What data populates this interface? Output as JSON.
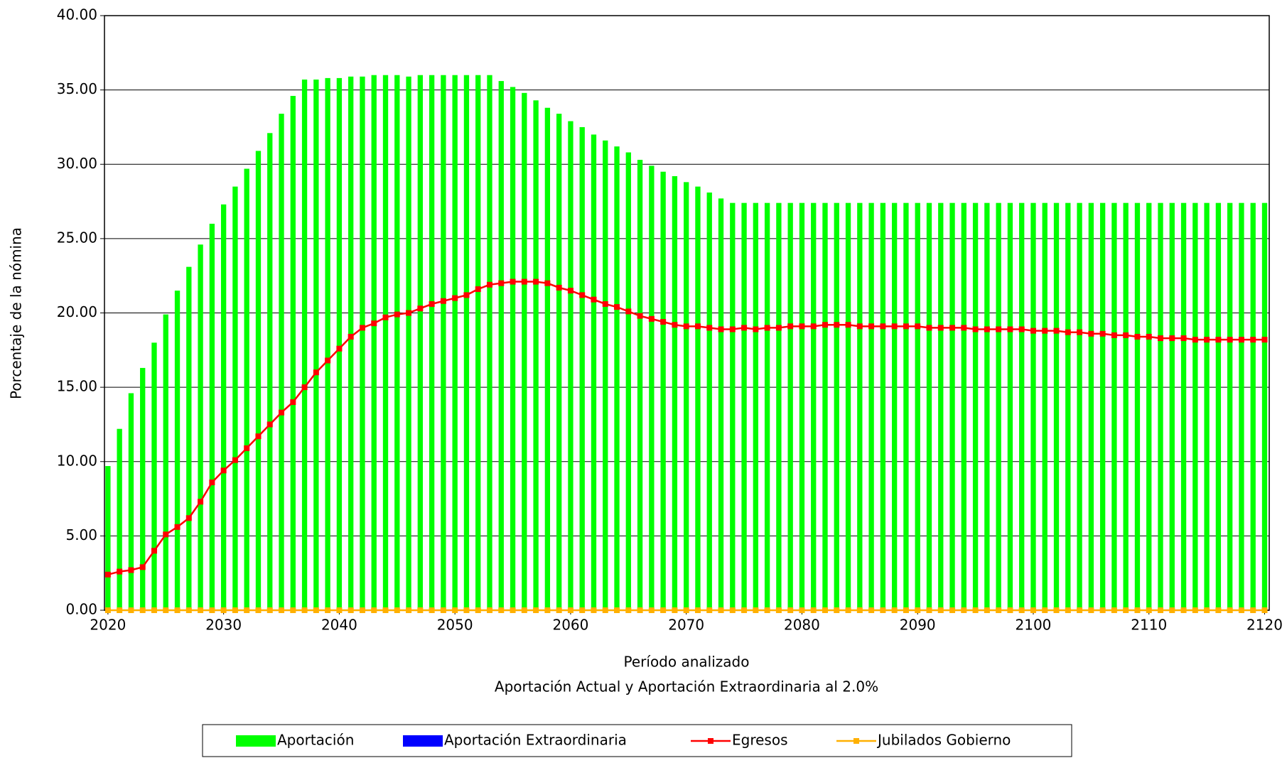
{
  "chart_data": {
    "type": "bar",
    "x_label": "Período analizado",
    "subtitle": "Aportación Actual y Aportación Extraordinaria al 2.0%",
    "y_label": "Porcentaje de la nómina",
    "x": [
      2020,
      2021,
      2022,
      2023,
      2024,
      2025,
      2026,
      2027,
      2028,
      2029,
      2030,
      2031,
      2032,
      2033,
      2034,
      2035,
      2036,
      2037,
      2038,
      2039,
      2040,
      2041,
      2042,
      2043,
      2044,
      2045,
      2046,
      2047,
      2048,
      2049,
      2050,
      2051,
      2052,
      2053,
      2054,
      2055,
      2056,
      2057,
      2058,
      2059,
      2060,
      2061,
      2062,
      2063,
      2064,
      2065,
      2066,
      2067,
      2068,
      2069,
      2070,
      2071,
      2072,
      2073,
      2074,
      2075,
      2076,
      2077,
      2078,
      2079,
      2080,
      2081,
      2082,
      2083,
      2084,
      2085,
      2086,
      2087,
      2088,
      2089,
      2090,
      2091,
      2092,
      2093,
      2094,
      2095,
      2096,
      2097,
      2098,
      2099,
      2100,
      2101,
      2102,
      2103,
      2104,
      2105,
      2106,
      2107,
      2108,
      2109,
      2110,
      2111,
      2112,
      2113,
      2114,
      2115,
      2116,
      2117,
      2118,
      2119,
      2120
    ],
    "series": [
      {
        "name": "Aportación",
        "type": "bar",
        "color": "#00ff00",
        "values": [
          9.7,
          12.2,
          14.6,
          16.3,
          18.0,
          19.9,
          21.5,
          23.1,
          24.6,
          26.0,
          27.3,
          28.5,
          29.7,
          30.9,
          32.1,
          33.4,
          34.6,
          35.7,
          35.7,
          35.8,
          35.8,
          35.9,
          35.9,
          36.0,
          36.0,
          36.0,
          35.9,
          36.0,
          36.0,
          36.0,
          36.0,
          36.0,
          36.0,
          36.0,
          35.6,
          35.2,
          34.8,
          34.3,
          33.8,
          33.4,
          32.9,
          32.5,
          32.0,
          31.6,
          31.2,
          30.8,
          30.3,
          29.9,
          29.5,
          29.2,
          28.8,
          28.5,
          28.1,
          27.7,
          27.4,
          27.4,
          27.4,
          27.4,
          27.4,
          27.4,
          27.4,
          27.4,
          27.4,
          27.4,
          27.4,
          27.4,
          27.4,
          27.4,
          27.4,
          27.4,
          27.4,
          27.4,
          27.4,
          27.4,
          27.4,
          27.4,
          27.4,
          27.4,
          27.4,
          27.4,
          27.4,
          27.4,
          27.4,
          27.4,
          27.4,
          27.4,
          27.4,
          27.4,
          27.4,
          27.4,
          27.4,
          27.4,
          27.4,
          27.4,
          27.4,
          27.4,
          27.4,
          27.4,
          27.4,
          27.4,
          27.4
        ]
      },
      {
        "name": "Aportación Extraordinaria",
        "type": "bar",
        "color": "#0000ff",
        "values": [
          0,
          0,
          0,
          0,
          0,
          0,
          0,
          0,
          0,
          0,
          0,
          0,
          0,
          0,
          0,
          0,
          0,
          0,
          0,
          0,
          0,
          0,
          0,
          0,
          0,
          0,
          0,
          0,
          0,
          0,
          0,
          0,
          0,
          0,
          0,
          0,
          0,
          0,
          0,
          0,
          0,
          0,
          0,
          0,
          0,
          0,
          0,
          0,
          0,
          0,
          0,
          0,
          0,
          0,
          0,
          0,
          0,
          0,
          0,
          0,
          0,
          0,
          0,
          0,
          0,
          0,
          0,
          0,
          0,
          0,
          0,
          0,
          0,
          0,
          0,
          0,
          0,
          0,
          0,
          0,
          0,
          0,
          0,
          0,
          0,
          0,
          0,
          0,
          0,
          0,
          0,
          0,
          0,
          0,
          0,
          0,
          0,
          0,
          0,
          0,
          0
        ]
      },
      {
        "name": "Egresos",
        "type": "line",
        "color": "#ff0000",
        "values": [
          2.4,
          2.6,
          2.7,
          2.9,
          4.0,
          5.1,
          5.6,
          6.2,
          7.3,
          8.6,
          9.4,
          10.1,
          10.9,
          11.7,
          12.5,
          13.3,
          14.0,
          15.0,
          16.0,
          16.8,
          17.6,
          18.4,
          19.0,
          19.3,
          19.7,
          19.9,
          20.0,
          20.3,
          20.6,
          20.8,
          21.0,
          21.2,
          21.6,
          21.9,
          22.0,
          22.1,
          22.1,
          22.1,
          22.0,
          21.7,
          21.5,
          21.2,
          20.9,
          20.6,
          20.4,
          20.1,
          19.8,
          19.6,
          19.4,
          19.2,
          19.1,
          19.1,
          19.0,
          18.9,
          18.9,
          19.0,
          18.9,
          19.0,
          19.0,
          19.1,
          19.1,
          19.1,
          19.2,
          19.2,
          19.2,
          19.1,
          19.1,
          19.1,
          19.1,
          19.1,
          19.1,
          19.0,
          19.0,
          19.0,
          19.0,
          18.9,
          18.9,
          18.9,
          18.9,
          18.9,
          18.8,
          18.8,
          18.8,
          18.7,
          18.7,
          18.6,
          18.6,
          18.5,
          18.5,
          18.4,
          18.4,
          18.3,
          18.3,
          18.3,
          18.2,
          18.2,
          18.2,
          18.2,
          18.2,
          18.2,
          18.2
        ]
      },
      {
        "name": "Jubilados Gobierno",
        "type": "line",
        "color": "#ffb000",
        "values": [
          0,
          0,
          0,
          0,
          0,
          0,
          0,
          0,
          0,
          0,
          0,
          0,
          0,
          0,
          0,
          0,
          0,
          0,
          0,
          0,
          0,
          0,
          0,
          0,
          0,
          0,
          0,
          0,
          0,
          0,
          0,
          0,
          0,
          0,
          0,
          0,
          0,
          0,
          0,
          0,
          0,
          0,
          0,
          0,
          0,
          0,
          0,
          0,
          0,
          0,
          0,
          0,
          0,
          0,
          0,
          0,
          0,
          0,
          0,
          0,
          0,
          0,
          0,
          0,
          0,
          0,
          0,
          0,
          0,
          0,
          0,
          0,
          0,
          0,
          0,
          0,
          0,
          0,
          0,
          0,
          0,
          0,
          0,
          0,
          0,
          0,
          0,
          0,
          0,
          0,
          0,
          0,
          0,
          0,
          0,
          0,
          0,
          0,
          0,
          0,
          0
        ]
      }
    ],
    "xlim": [
      2019.7,
      2120.4
    ],
    "xticks": [
      2020,
      2030,
      2040,
      2050,
      2060,
      2070,
      2080,
      2090,
      2100,
      2110,
      2120
    ],
    "ylim": [
      0,
      40
    ],
    "yticks": [
      {
        "value": 0,
        "label": "0.00"
      },
      {
        "value": 5,
        "label": "5.00"
      },
      {
        "value": 10,
        "label": "10.00"
      },
      {
        "value": 15,
        "label": "15.00"
      },
      {
        "value": 20,
        "label": "20.00"
      },
      {
        "value": 25,
        "label": "25.00"
      },
      {
        "value": 30,
        "label": "30.00"
      },
      {
        "value": 35,
        "label": "35.00"
      },
      {
        "value": 40,
        "label": "40.00"
      }
    ],
    "grid": true,
    "legend": "bottom"
  }
}
